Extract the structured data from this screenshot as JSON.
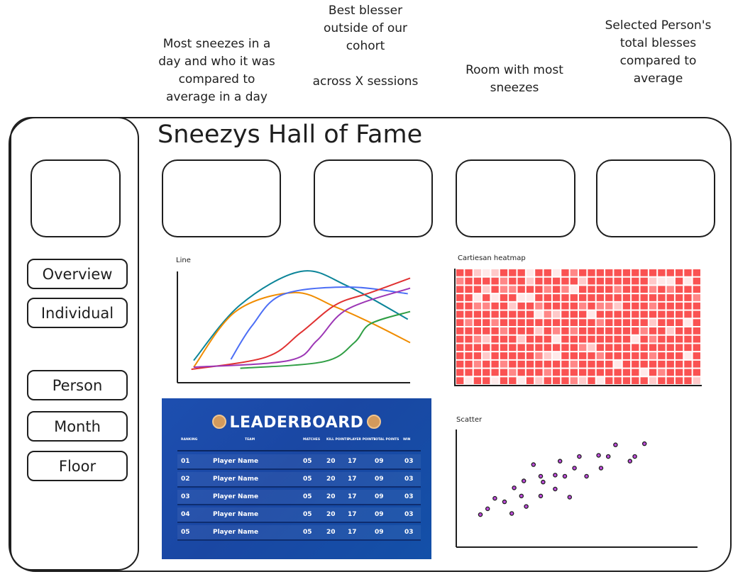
{
  "annotations": [
    "Most sneezes in a day and who it was compared to average in a day",
    "Best blesser outside of our cohort\n\nacross X sessions",
    "Room with most sneezes",
    "Selected Person's total blesses compared to average"
  ],
  "title": "Sneezys Hall of Fame",
  "sidebar": {
    "items": [
      "Overview",
      "Individual",
      "Person",
      "Month",
      "Floor"
    ]
  },
  "colors": {
    "heat": [
      "#fa5252",
      "#ff8787",
      "#ffc9c9",
      "#ffe9e9"
    ],
    "scatter": "#be4bdb"
  },
  "leaderboard": {
    "title": "LEADERBOARD",
    "columns": [
      "RANKING",
      "TEAM",
      "MATCHES",
      "KILL POINTS",
      "PLAYER POINTS",
      "TOTAL POINTS",
      "WIN"
    ],
    "rows": [
      [
        "01",
        "Player Name",
        "05",
        "20",
        "17",
        "09",
        "03"
      ],
      [
        "02",
        "Player Name",
        "05",
        "20",
        "17",
        "09",
        "03"
      ],
      [
        "03",
        "Player Name",
        "05",
        "20",
        "17",
        "09",
        "03"
      ],
      [
        "04",
        "Player Name",
        "05",
        "20",
        "17",
        "09",
        "03"
      ],
      [
        "05",
        "Player Name",
        "05",
        "20",
        "17",
        "09",
        "03"
      ]
    ]
  },
  "chart_data": [
    {
      "type": "line",
      "title": "Line",
      "xlim": [
        0,
        100
      ],
      "ylim": [
        0,
        100
      ],
      "series": [
        {
          "color": "#0c8599",
          "points": [
            [
              7,
              20
            ],
            [
              27,
              70
            ],
            [
              53,
              100
            ],
            [
              73,
              87
            ],
            [
              99,
              57
            ]
          ]
        },
        {
          "color": "#f08c00",
          "points": [
            [
              7,
              14
            ],
            [
              25,
              64
            ],
            [
              50,
              81
            ],
            [
              68,
              68
            ],
            [
              84,
              53
            ],
            [
              100,
              36
            ]
          ]
        },
        {
          "color": "#4c6ef5",
          "points": [
            [
              23,
              21
            ],
            [
              32,
              51
            ],
            [
              45,
              79
            ],
            [
              73,
              86
            ],
            [
              99,
              80
            ]
          ]
        },
        {
          "color": "#e03131",
          "points": [
            [
              6,
              12
            ],
            [
              38,
              23
            ],
            [
              53,
              45
            ],
            [
              68,
              70
            ],
            [
              83,
              81
            ],
            [
              100,
              94
            ]
          ]
        },
        {
          "color": "#9c36b5",
          "points": [
            [
              7,
              14
            ],
            [
              48,
              20
            ],
            [
              60,
              38
            ],
            [
              73,
              66
            ],
            [
              100,
              85
            ]
          ]
        },
        {
          "color": "#2f9e44",
          "points": [
            [
              27,
              13
            ],
            [
              63,
              19
            ],
            [
              76,
              36
            ],
            [
              83,
              53
            ],
            [
              100,
              64
            ]
          ]
        }
      ]
    },
    {
      "type": "heatmap",
      "title": "Cartiesan heatmap",
      "levels": [
        "0023200030030100000000000000",
        "1000010020000020000000233030",
        "0002011000101300001000101000",
        "0030300330000000000000000001",
        "0011002001000010112000100000",
        "0000000003120003000000000000",
        "0100100000000000100000200030",
        "0000010002010100000001002000",
        "0012000200030000000030100000",
        "0000000000000012000000000000",
        "0002000001230000100000100030",
        "0010010000000100003000000000",
        "0000001000100000000003010000",
        "0300300302000120300000200002"
      ]
    },
    {
      "type": "scatter",
      "title": "Scatter",
      "xlim": [
        0,
        100
      ],
      "ylim": [
        0,
        100
      ],
      "points": [
        [
          10,
          28
        ],
        [
          13,
          33
        ],
        [
          16,
          42
        ],
        [
          20,
          39
        ],
        [
          23,
          29
        ],
        [
          24,
          51
        ],
        [
          27,
          44
        ],
        [
          28,
          57
        ],
        [
          29,
          35
        ],
        [
          32,
          71
        ],
        [
          35,
          61
        ],
        [
          35,
          44
        ],
        [
          36,
          56
        ],
        [
          41,
          62
        ],
        [
          41,
          50
        ],
        [
          43,
          74
        ],
        [
          45,
          61
        ],
        [
          47,
          43
        ],
        [
          49,
          68
        ],
        [
          51,
          78
        ],
        [
          54,
          61
        ],
        [
          59,
          79
        ],
        [
          60,
          68
        ],
        [
          63,
          78
        ],
        [
          66,
          88
        ],
        [
          72,
          74
        ],
        [
          74,
          78
        ],
        [
          78,
          89
        ]
      ]
    }
  ]
}
